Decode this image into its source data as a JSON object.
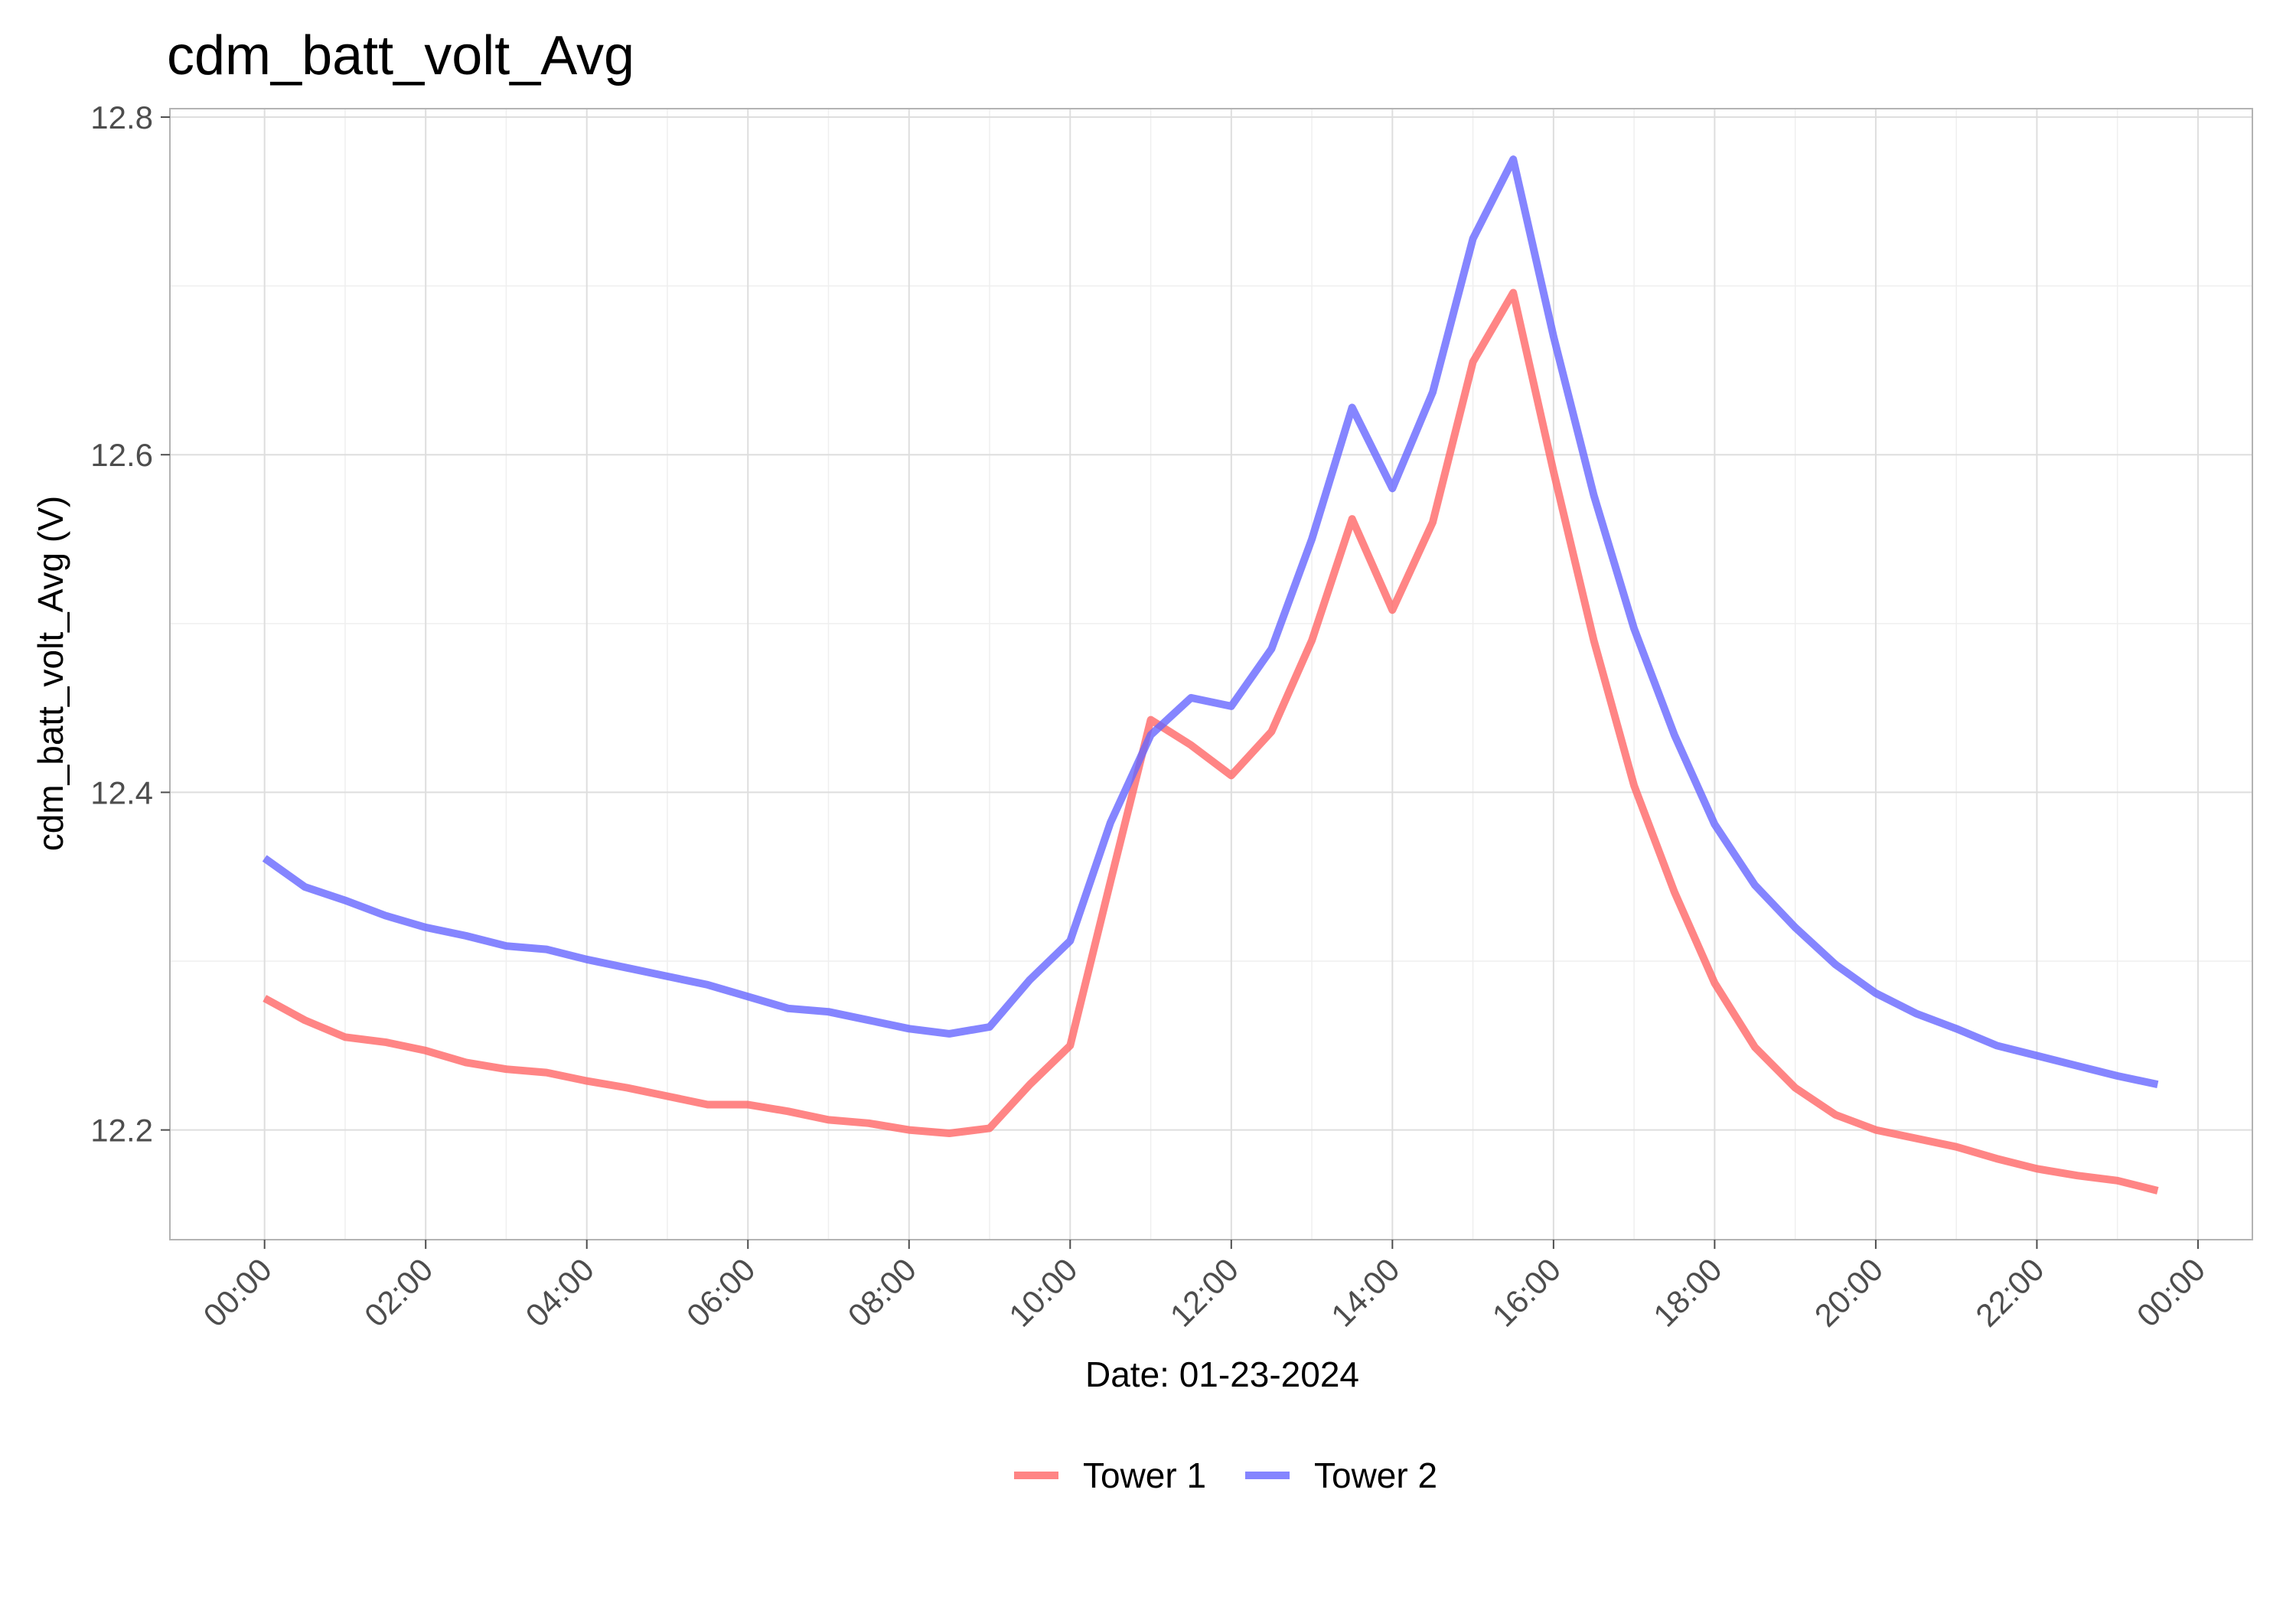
{
  "chart_data": {
    "type": "line",
    "title": "cdm_batt_volt_Avg",
    "xlabel": "Date: 01-23-2024",
    "ylabel": "cdm_batt_volt_Avg (V)",
    "x_tick_labels": [
      "00:00",
      "02:00",
      "04:00",
      "06:00",
      "08:00",
      "10:00",
      "12:00",
      "14:00",
      "16:00",
      "18:00",
      "20:00",
      "22:00",
      "00:00"
    ],
    "y_ticks": [
      12.2,
      12.4,
      12.6,
      12.8
    ],
    "y_tick_labels": [
      "12.2",
      "12.4",
      "12.6",
      "12.8"
    ],
    "xlim": [
      "2024-01-23 00:00",
      "2024-01-24 00:00"
    ],
    "ylim": [
      12.135,
      12.805
    ],
    "grid": true,
    "legend_position": "bottom",
    "x": [
      "2024-01-23 00:00",
      "2024-01-23 00:30",
      "2024-01-23 01:00",
      "2024-01-23 01:30",
      "2024-01-23 02:00",
      "2024-01-23 02:30",
      "2024-01-23 03:00",
      "2024-01-23 03:30",
      "2024-01-23 04:00",
      "2024-01-23 04:30",
      "2024-01-23 05:00",
      "2024-01-23 05:30",
      "2024-01-23 06:00",
      "2024-01-23 06:30",
      "2024-01-23 07:00",
      "2024-01-23 07:30",
      "2024-01-23 08:00",
      "2024-01-23 08:30",
      "2024-01-23 09:00",
      "2024-01-23 09:30",
      "2024-01-23 10:00",
      "2024-01-23 10:30",
      "2024-01-23 11:00",
      "2024-01-23 11:30",
      "2024-01-23 12:00",
      "2024-01-23 12:30",
      "2024-01-23 13:00",
      "2024-01-23 13:30",
      "2024-01-23 14:00",
      "2024-01-23 14:30",
      "2024-01-23 15:00",
      "2024-01-23 15:30",
      "2024-01-23 16:00",
      "2024-01-23 16:30",
      "2024-01-23 17:00",
      "2024-01-23 17:30",
      "2024-01-23 18:00",
      "2024-01-23 18:30",
      "2024-01-23 19:00",
      "2024-01-23 19:30",
      "2024-01-23 20:00",
      "2024-01-23 20:30",
      "2024-01-23 21:00",
      "2024-01-23 21:30",
      "2024-01-23 22:00",
      "2024-01-23 22:30",
      "2024-01-23 23:00",
      "2024-01-23 23:30"
    ],
    "series": [
      {
        "name": "Tower 1",
        "color": "#ff6666",
        "values": [
          12.278,
          12.265,
          12.255,
          12.252,
          12.247,
          12.24,
          12.236,
          12.234,
          12.229,
          12.225,
          12.22,
          12.215,
          12.215,
          12.211,
          12.206,
          12.204,
          12.2,
          12.198,
          12.201,
          12.227,
          12.25,
          12.347,
          12.443,
          12.428,
          12.41,
          12.436,
          12.49,
          12.562,
          12.508,
          12.56,
          12.655,
          12.696,
          12.59,
          12.49,
          12.404,
          12.341,
          12.287,
          12.249,
          12.225,
          12.209,
          12.2,
          12.195,
          12.19,
          12.183,
          12.177,
          12.173,
          12.17,
          12.164
        ]
      },
      {
        "name": "Tower 2",
        "color": "#6666ff",
        "values": [
          12.361,
          12.344,
          12.336,
          12.327,
          12.32,
          12.315,
          12.309,
          12.307,
          12.301,
          12.296,
          12.291,
          12.286,
          12.279,
          12.272,
          12.27,
          12.265,
          12.26,
          12.257,
          12.261,
          12.289,
          12.312,
          12.382,
          12.434,
          12.456,
          12.451,
          12.485,
          12.55,
          12.628,
          12.58,
          12.637,
          12.728,
          12.775,
          12.67,
          12.576,
          12.497,
          12.434,
          12.381,
          12.345,
          12.32,
          12.298,
          12.281,
          12.269,
          12.26,
          12.25,
          12.244,
          12.238,
          12.232,
          12.227
        ]
      }
    ]
  }
}
